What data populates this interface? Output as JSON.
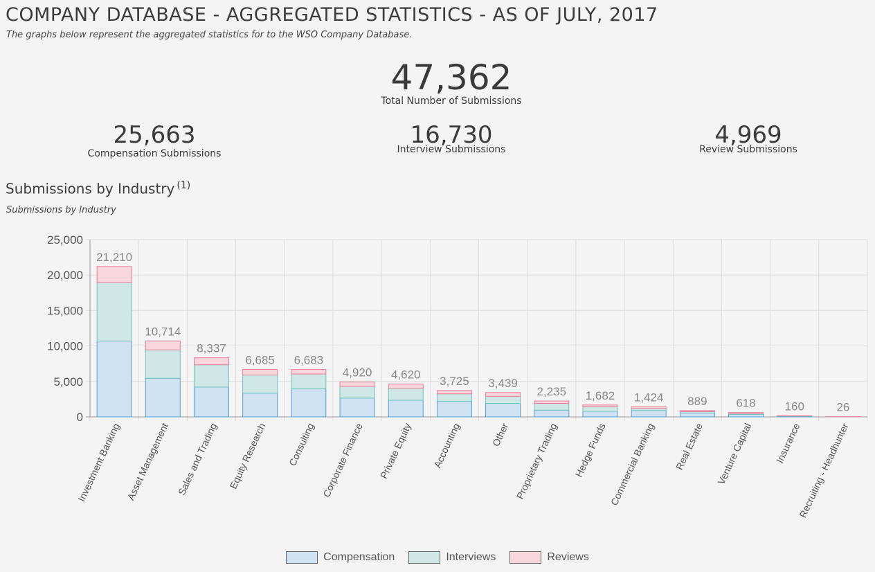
{
  "header": {
    "title": "COMPANY DATABASE - AGGREGATED STATISTICS - AS OF JULY, 2017",
    "subtitle": "The graphs below represent the aggregated statistics for to the WSO Company Database."
  },
  "stats": {
    "total": {
      "value": "47,362",
      "label": "Total Number of Submissions"
    },
    "compensation": {
      "value": "25,663",
      "label": "Compensation Submissions"
    },
    "interview": {
      "value": "16,730",
      "label": "Interview Submissions"
    },
    "review": {
      "value": "4,969",
      "label": "Review Submissions"
    }
  },
  "section": {
    "title": "Submissions by Industry",
    "footnote": "(1)",
    "subtitle": "Submissions by Industry"
  },
  "colors": {
    "compensation_fill": "#cfe2f1",
    "compensation_stroke": "#4f9fd6",
    "interviews_fill": "#cfe8e6",
    "interviews_stroke": "#72c2bd",
    "reviews_fill": "#f7d6dd",
    "reviews_stroke": "#ec7b98"
  },
  "chart_data": {
    "type": "bar",
    "stacked": true,
    "title": "Submissions by Industry",
    "xlabel": "",
    "ylabel": "",
    "ylim": [
      0,
      25000
    ],
    "yticks": [
      "0",
      "5,000",
      "10,000",
      "15,000",
      "20,000",
      "25,000"
    ],
    "ytick_values": [
      0,
      5000,
      10000,
      15000,
      20000,
      25000
    ],
    "categories": [
      "Investment Banking",
      "Asset Management",
      "Sales and Trading",
      "Equity Research",
      "Consulting",
      "Corporate Finance",
      "Private Equity",
      "Accounting",
      "Other",
      "Proprietary Trading",
      "Hedge Funds",
      "Commercial Banking",
      "Real Estate",
      "Venture Capital",
      "Insurance",
      "Recruiting - Headhunter"
    ],
    "totals": [
      21210,
      10714,
      8337,
      6685,
      6683,
      4920,
      4620,
      3725,
      3439,
      2235,
      1682,
      1424,
      889,
      618,
      160,
      26
    ],
    "total_labels": [
      "21,210",
      "10,714",
      "8,337",
      "6,685",
      "6,683",
      "4,920",
      "4,620",
      "3,725",
      "3,439",
      "2,235",
      "1,682",
      "1,424",
      "889",
      "618",
      "160",
      "26"
    ],
    "series": [
      {
        "name": "Compensation",
        "values": [
          10700,
          5450,
          4200,
          3350,
          3950,
          2650,
          2350,
          2200,
          1900,
          950,
          780,
          900,
          550,
          350,
          80,
          15
        ]
      },
      {
        "name": "Interviews",
        "values": [
          8250,
          4000,
          3150,
          2550,
          2100,
          1650,
          1700,
          1050,
          1000,
          950,
          650,
          300,
          200,
          150,
          50,
          5
        ]
      },
      {
        "name": "Reviews",
        "values": [
          2260,
          1264,
          987,
          785,
          633,
          620,
          570,
          475,
          539,
          335,
          252,
          224,
          139,
          118,
          30,
          6
        ]
      }
    ],
    "legend": [
      "Compensation",
      "Interviews",
      "Reviews"
    ],
    "legend_position": "bottom-center",
    "grid": true
  }
}
